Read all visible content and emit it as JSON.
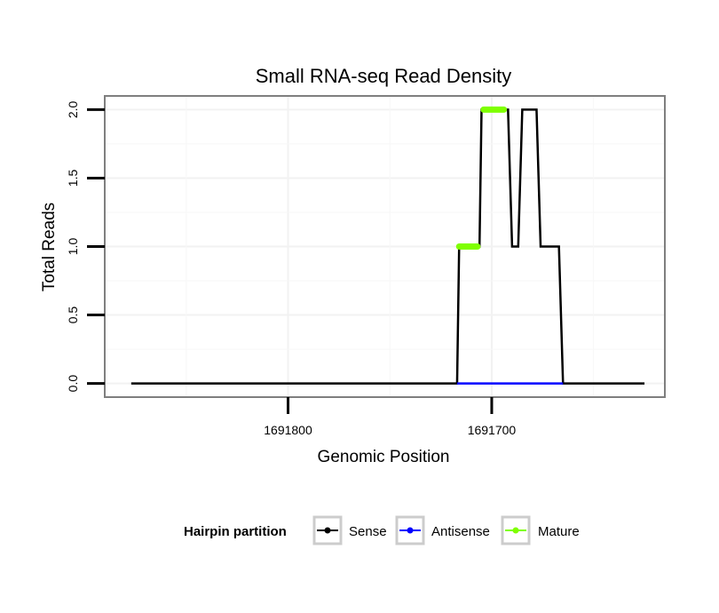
{
  "chart_data": {
    "type": "line",
    "title": "Small RNA-seq Read Density",
    "xlabel": "Genomic Position",
    "ylabel": "Total Reads",
    "x_reversed": true,
    "xlim": [
      1691890,
      1691615
    ],
    "ylim": [
      -0.1,
      2.1
    ],
    "x_ticks": [
      1691800,
      1691700
    ],
    "x_tick_labels": [
      "1691800",
      "1691700"
    ],
    "y_ticks": [
      0,
      0.5,
      1,
      1.5,
      2
    ],
    "y_tick_labels": [
      "0.0",
      "0.5",
      "1.0",
      "1.5",
      "2.0"
    ],
    "grid": true,
    "legend": {
      "title": "Hairpin partition",
      "position": "bottom",
      "entries": [
        "Sense",
        "Antisense",
        "Mature"
      ]
    },
    "series": [
      {
        "name": "Sense",
        "color": "#000000",
        "x": [
          1691877,
          1691717,
          1691716,
          1691706,
          1691705,
          1691692,
          1691690,
          1691687,
          1691685,
          1691678,
          1691676,
          1691667,
          1691665,
          1691625
        ],
        "y": [
          0,
          0,
          1,
          1,
          2,
          2,
          1,
          1,
          2,
          2,
          1,
          1,
          0,
          0
        ]
      },
      {
        "name": "Antisense",
        "color": "#0000ff",
        "x": [
          1691717,
          1691665
        ],
        "y": [
          0,
          0
        ]
      },
      {
        "name": "Mature",
        "color": "#7fff00",
        "segments": [
          {
            "x": [
              1691716,
              1691707
            ],
            "y": [
              1,
              1
            ]
          },
          {
            "x": [
              1691704,
              1691694
            ],
            "y": [
              2,
              2
            ]
          }
        ]
      }
    ]
  }
}
